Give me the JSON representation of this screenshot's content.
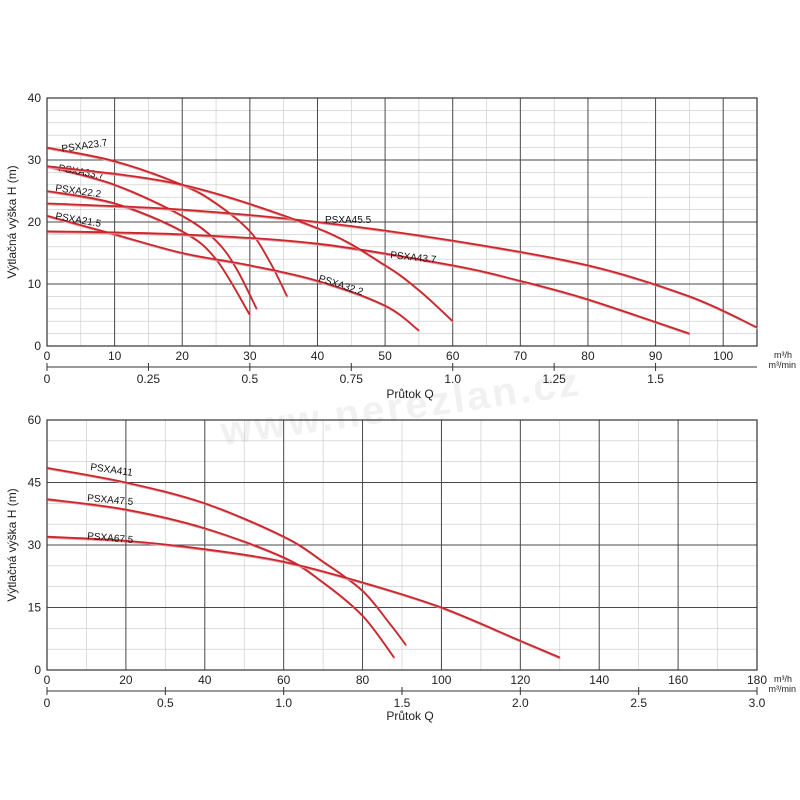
{
  "watermark": "www.nerezlan.cz",
  "colors": {
    "curve": "#c8282d",
    "curve_shadow": "#e89aa0"
  },
  "chart_data": [
    {
      "type": "line",
      "ylabel": "Výtlačná výška H (m)",
      "xlabel": "Průtok Q",
      "x_unit": "m³/h",
      "x2_unit": "m³/min",
      "xlim": [
        0,
        105
      ],
      "ylim": [
        0,
        40
      ],
      "x_ticks": [
        "0",
        "10",
        "20",
        "30",
        "40",
        "50",
        "60",
        "70",
        "80",
        "90",
        "100"
      ],
      "x2_ticks": [
        "0",
        "0.25",
        "0.5",
        "0.75",
        "1.0",
        "1.25",
        "1.5"
      ],
      "y_ticks": [
        "0",
        "10",
        "20",
        "30",
        "40"
      ],
      "grid": true,
      "series": [
        {
          "name": "PSXA23.7",
          "x": [
            0,
            10,
            20,
            25,
            30,
            33,
            35.5
          ],
          "y": [
            32,
            29.8,
            26,
            23,
            18.5,
            13.5,
            8
          ]
        },
        {
          "name": "PSXA33.7",
          "x": [
            0,
            10,
            20,
            25,
            28,
            31
          ],
          "y": [
            29,
            26,
            21,
            17,
            12.5,
            6
          ]
        },
        {
          "name": "PSXA22.2",
          "x": [
            0,
            10,
            20,
            25,
            30
          ],
          "y": [
            25,
            23,
            18.5,
            14,
            5
          ]
        },
        {
          "name": "PSXA21.5",
          "x": [
            0,
            10,
            20,
            30,
            40,
            50,
            55
          ],
          "y": [
            21,
            18,
            15,
            13,
            10.5,
            6.5,
            2.5
          ]
        },
        {
          "name": "PSXA45.5",
          "x": [
            0,
            20,
            40,
            60,
            80,
            95,
            105
          ],
          "y": [
            23,
            22,
            20,
            17,
            13,
            8,
            3
          ]
        },
        {
          "name": "PSXA43.7",
          "x": [
            0,
            20,
            40,
            60,
            70,
            80,
            95
          ],
          "y": [
            18.5,
            18,
            16.5,
            13,
            10.5,
            7.5,
            2
          ]
        },
        {
          "name": "PSXA32.2",
          "x": [
            0,
            20,
            40,
            50,
            55,
            60
          ],
          "y": [
            29,
            26,
            19,
            13,
            9,
            4
          ]
        }
      ]
    },
    {
      "type": "line",
      "ylabel": "Výtlačná výška H (m)",
      "xlabel": "Průtok Q",
      "x_unit": "m³/h",
      "x2_unit": "m³/min",
      "xlim": [
        0,
        180
      ],
      "ylim": [
        0,
        60
      ],
      "x_ticks": [
        "0",
        "20",
        "40",
        "60",
        "80",
        "100",
        "120",
        "140",
        "160",
        "180"
      ],
      "x2_ticks": [
        "0",
        "0.5",
        "1.0",
        "1.5",
        "2.0",
        "2.5",
        "3.0"
      ],
      "y_ticks": [
        "0",
        "15",
        "30",
        "45",
        "60"
      ],
      "grid": true,
      "series": [
        {
          "name": "PSXA411",
          "x": [
            0,
            20,
            40,
            60,
            70,
            80,
            87,
            91
          ],
          "y": [
            48.5,
            45,
            40,
            32,
            26,
            19,
            11,
            6
          ]
        },
        {
          "name": "PSXA47.5",
          "x": [
            0,
            20,
            40,
            60,
            70,
            80,
            88
          ],
          "y": [
            41,
            38.5,
            34,
            27,
            21,
            13,
            3
          ]
        },
        {
          "name": "PSXA67.5",
          "x": [
            0,
            20,
            40,
            60,
            80,
            100,
            120,
            130
          ],
          "y": [
            32,
            31,
            29,
            26,
            21,
            15,
            7,
            3
          ]
        }
      ]
    }
  ]
}
